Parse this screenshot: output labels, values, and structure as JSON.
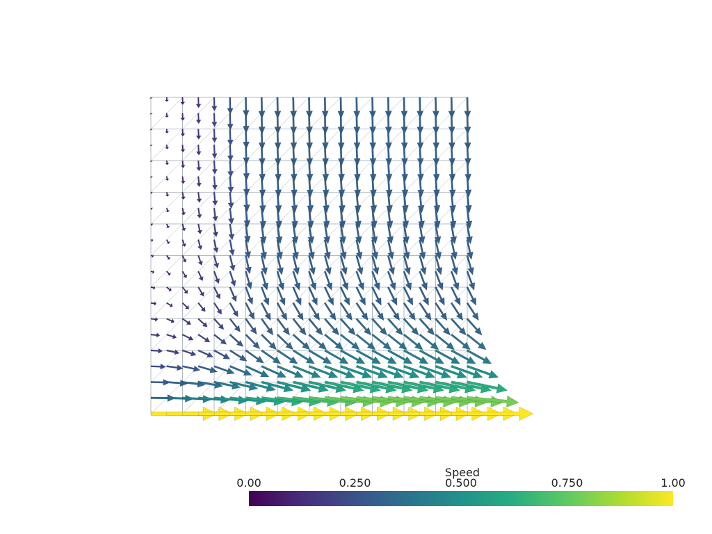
{
  "colorbar": {
    "title": "Speed",
    "lim": [
      0,
      1
    ],
    "ticks": [
      {
        "value": 0,
        "label": "0.00"
      },
      {
        "value": 0.25,
        "label": "0.250"
      },
      {
        "value": 0.5,
        "label": "0.500"
      },
      {
        "value": 0.75,
        "label": "0.750"
      },
      {
        "value": 1,
        "label": "1.00"
      }
    ]
  }
}
